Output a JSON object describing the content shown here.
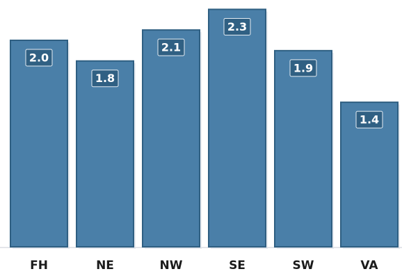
{
  "chart_data": {
    "type": "bar",
    "categories": [
      "FH",
      "NE",
      "NW",
      "SE",
      "SW",
      "VA"
    ],
    "values": [
      2.0,
      1.8,
      2.1,
      2.3,
      1.9,
      1.4
    ],
    "value_labels": [
      "2.0",
      "1.8",
      "2.1",
      "2.3",
      "1.9",
      "1.4"
    ],
    "ylim": [
      0,
      2.33
    ],
    "bar_color": "#4a7fa8",
    "bar_edge_color": "#2f5f82",
    "label_box_color": "#2f5f82",
    "grid": false,
    "legend": "none"
  }
}
